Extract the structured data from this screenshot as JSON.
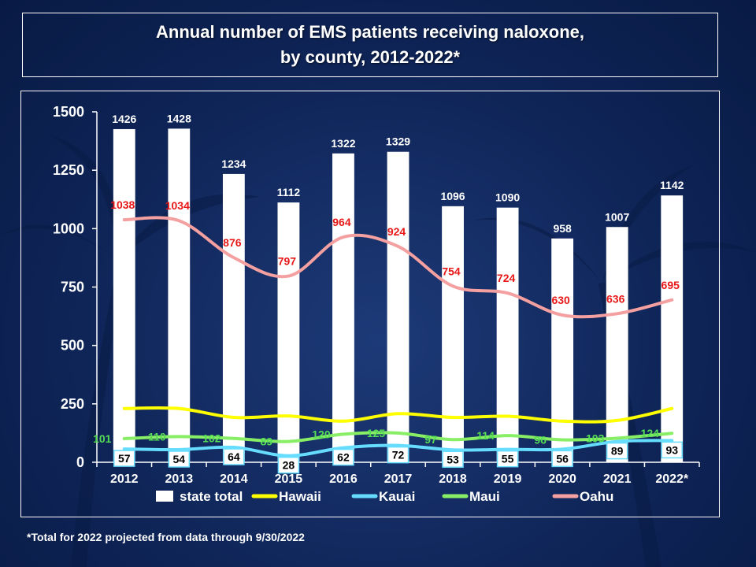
{
  "title_line1": "Annual number of EMS patients receiving naloxone,",
  "title_line2": "by county, 2012-2022*",
  "footnote": "*Total for 2022 projected from data through 9/30/2022",
  "chart_data": {
    "type": "bar",
    "categories": [
      "2012",
      "2013",
      "2014",
      "2015",
      "2016",
      "2017",
      "2018",
      "2019",
      "2020",
      "2021",
      "2022*"
    ],
    "ylim": [
      0,
      1500
    ],
    "yticks": [
      0,
      250,
      500,
      750,
      1000,
      1250,
      1500
    ],
    "grid": false,
    "legend": "bottom",
    "series": [
      {
        "name": "state total",
        "type": "bar",
        "color": "#ffffff",
        "label_color": "#ffffff",
        "values": [
          1426,
          1428,
          1234,
          1112,
          1322,
          1329,
          1096,
          1090,
          958,
          1007,
          1142
        ]
      },
      {
        "name": "Hawaii",
        "type": "line",
        "color": "#ffff00",
        "label_color": "#ffffff",
        "values": [
          230,
          230,
          192,
          198,
          176,
          208,
          192,
          197,
          176,
          179,
          230
        ]
      },
      {
        "name": "Kauai",
        "type": "line",
        "color": "#66ddff",
        "label_color": "#000000",
        "values": [
          57,
          54,
          64,
          28,
          62,
          72,
          53,
          55,
          56,
          89,
          93
        ]
      },
      {
        "name": "Maui",
        "type": "line",
        "color": "#88ee66",
        "label_color": "#55dd55",
        "values": [
          101,
          110,
          102,
          89,
          120,
          125,
          97,
          114,
          96,
          103,
          124
        ]
      },
      {
        "name": "Oahu",
        "type": "line",
        "color": "#f4a0a0",
        "label_color": "#e81818",
        "values": [
          1038,
          1034,
          876,
          797,
          964,
          924,
          754,
          724,
          630,
          636,
          695
        ]
      }
    ]
  }
}
